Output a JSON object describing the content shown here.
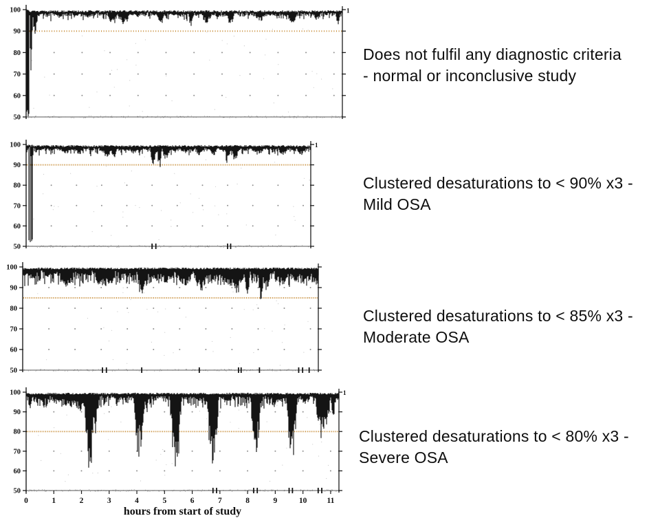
{
  "colors": {
    "trace": "#141414",
    "threshold": "#c4862b",
    "axis": "#1c1c1c",
    "grid_dot": "#8e8e8e",
    "speckle": "#4a4a4a",
    "text": "#0e0e0e"
  },
  "xaxis": {
    "label": "hours from start of study",
    "ticks": [
      0,
      1,
      2,
      3,
      4,
      5,
      6,
      7,
      8,
      9,
      10,
      11
    ]
  },
  "chart_data": [
    {
      "type": "line",
      "panel": "normal-study",
      "annotation_line1": "Does not fulfil any diagnostic criteria",
      "annotation_line2": "- normal or inconclusive study",
      "y_ticks": [
        100,
        90,
        80,
        70,
        60,
        50
      ],
      "ylim": [
        50,
        100
      ],
      "hours_span": 11.3,
      "threshold": 90,
      "channel_label": "1",
      "grid_dot_rows": [
        80,
        70,
        60
      ],
      "noise": {
        "band_min": 0.8,
        "band_var": 1.5,
        "dip_prob": 0.18,
        "dip_mag": 2.5
      },
      "start_artifact": {
        "end": 0.1,
        "prob": 0.85
      },
      "events": [
        {
          "h": 0.18,
          "min": 67,
          "w": 0.06
        },
        {
          "h": 0.32,
          "min": 85,
          "w": 0.09
        },
        {
          "h": 1.2,
          "min": 96.5,
          "w": 0.2
        },
        {
          "h": 2.2,
          "min": 96,
          "w": 0.2
        },
        {
          "h": 3.1,
          "min": 93,
          "w": 0.2
        },
        {
          "h": 3.5,
          "min": 92.5,
          "w": 0.22
        },
        {
          "h": 4.8,
          "min": 92,
          "w": 0.15
        },
        {
          "h": 5.9,
          "min": 91.5,
          "w": 0.1
        },
        {
          "h": 6.45,
          "min": 93,
          "w": 0.2
        },
        {
          "h": 7.3,
          "min": 92.5,
          "w": 0.15
        },
        {
          "h": 8.35,
          "min": 94,
          "w": 0.2
        },
        {
          "h": 9.5,
          "min": 93.5,
          "w": 0.2
        },
        {
          "h": 10.4,
          "min": 95,
          "w": 0.15
        },
        {
          "h": 11.15,
          "min": 91.5,
          "w": 0.07
        }
      ],
      "baseline_marks_hours": []
    },
    {
      "type": "line",
      "panel": "mild-osa",
      "annotation_line1": "Clustered desaturations to < 90% x3 -",
      "annotation_line2": "Mild OSA",
      "y_ticks": [
        100,
        90,
        80,
        70,
        60,
        50
      ],
      "ylim": [
        50,
        100
      ],
      "hours_span": 11.3,
      "threshold": 90,
      "channel_label": "1",
      "grid_dot_rows": [
        80,
        70,
        60
      ],
      "noise": {
        "band_min": 0.9,
        "band_var": 1.6,
        "dip_prob": 0.25,
        "dip_mag": 2.8
      },
      "start_artifact": {
        "end": 0.3,
        "prob": 0.7
      },
      "events": [
        {
          "h": 1.6,
          "min": 95.5,
          "w": 0.25
        },
        {
          "h": 2.1,
          "min": 95,
          "w": 0.2
        },
        {
          "h": 3.2,
          "min": 94,
          "w": 0.25
        },
        {
          "h": 3.5,
          "min": 93.5,
          "w": 0.12
        },
        {
          "h": 4.3,
          "min": 95,
          "w": 0.2
        },
        {
          "h": 5.05,
          "min": 89.5,
          "w": 0.13
        },
        {
          "h": 5.3,
          "min": 86.5,
          "w": 0.1
        },
        {
          "h": 5.55,
          "min": 92,
          "w": 0.15
        },
        {
          "h": 6.3,
          "min": 96,
          "w": 0.2
        },
        {
          "h": 6.9,
          "min": 94,
          "w": 0.2
        },
        {
          "h": 7.45,
          "min": 93.5,
          "w": 0.15
        },
        {
          "h": 8.0,
          "min": 90.5,
          "w": 0.13
        },
        {
          "h": 8.3,
          "min": 91.5,
          "w": 0.15
        },
        {
          "h": 9.2,
          "min": 95,
          "w": 0.3
        },
        {
          "h": 10.2,
          "min": 94.5,
          "w": 0.2
        },
        {
          "h": 10.9,
          "min": 95,
          "w": 0.2
        }
      ],
      "baseline_marks_hours": [
        5.0,
        5.15,
        8.0,
        8.12
      ]
    },
    {
      "type": "line",
      "panel": "moderate-osa",
      "annotation_line1": "Clustered desaturations to < 85% x3 -",
      "annotation_line2": "Moderate OSA",
      "y_ticks": [
        100,
        90,
        80,
        70,
        60,
        50
      ],
      "ylim": [
        50,
        100
      ],
      "hours_span": 11.3,
      "threshold": 85,
      "channel_label": "",
      "grid_dot_rows": [
        90,
        80,
        70,
        60
      ],
      "noise": {
        "band_min": 1.2,
        "band_var": 2.4,
        "dip_prob": 0.6,
        "dip_mag": 5.5
      },
      "start_artifact": null,
      "events": [
        {
          "h": 0.4,
          "min": 94,
          "w": 0.2
        },
        {
          "h": 1.0,
          "min": 95,
          "w": 0.3
        },
        {
          "h": 1.65,
          "min": 90,
          "w": 0.28
        },
        {
          "h": 2.4,
          "min": 95,
          "w": 0.25
        },
        {
          "h": 3.0,
          "min": 90,
          "w": 0.3
        },
        {
          "h": 3.35,
          "min": 91,
          "w": 0.2
        },
        {
          "h": 4.55,
          "min": 85.5,
          "w": 0.2
        },
        {
          "h": 5.0,
          "min": 93,
          "w": 0.25
        },
        {
          "h": 5.5,
          "min": 91.5,
          "w": 0.3
        },
        {
          "h": 6.2,
          "min": 90.5,
          "w": 0.35
        },
        {
          "h": 6.8,
          "min": 88,
          "w": 0.3
        },
        {
          "h": 7.3,
          "min": 92,
          "w": 0.25
        },
        {
          "h": 7.8,
          "min": 90,
          "w": 0.3
        },
        {
          "h": 8.2,
          "min": 87,
          "w": 0.3
        },
        {
          "h": 8.6,
          "min": 77,
          "w": 0.08
        },
        {
          "h": 9.1,
          "min": 78,
          "w": 0.1
        },
        {
          "h": 9.3,
          "min": 88,
          "w": 0.2
        },
        {
          "h": 9.9,
          "min": 90,
          "w": 0.3
        },
        {
          "h": 10.4,
          "min": 92,
          "w": 0.25
        },
        {
          "h": 10.8,
          "min": 90.5,
          "w": 0.25
        },
        {
          "h": 11.15,
          "min": 93,
          "w": 0.1
        }
      ],
      "baseline_marks_hours": [
        3.05,
        3.2,
        4.55,
        6.75,
        8.25,
        8.35,
        9.05,
        10.55,
        10.7,
        10.95
      ]
    },
    {
      "type": "line",
      "panel": "severe-osa",
      "annotation_line1": "Clustered desaturations to < 80% x3 -",
      "annotation_line2": "Severe OSA",
      "y_ticks": [
        100,
        90,
        80,
        70,
        60,
        50
      ],
      "ylim": [
        50,
        100
      ],
      "hours_span": 11.3,
      "threshold": 80,
      "channel_label": "1",
      "grid_dot_rows": [
        90,
        70,
        60
      ],
      "has_x_axis": true,
      "noise": {
        "band_min": 1.2,
        "band_var": 2.0,
        "dip_prob": 0.5,
        "dip_mag": 4.5
      },
      "start_artifact": null,
      "events": [
        {
          "h": 0.15,
          "min": 89,
          "w": 0.08
        },
        {
          "h": 0.5,
          "min": 95,
          "w": 0.2
        },
        {
          "h": 1.1,
          "min": 94,
          "w": 0.25
        },
        {
          "h": 1.6,
          "min": 92,
          "w": 0.3
        },
        {
          "h": 1.95,
          "min": 90,
          "w": 0.25
        },
        {
          "h": 2.15,
          "min": 87,
          "w": 0.12
        },
        {
          "h": 2.3,
          "min": 60,
          "w": 0.2
        },
        {
          "h": 2.5,
          "min": 75,
          "w": 0.1
        },
        {
          "h": 3.3,
          "min": 96,
          "w": 0.2
        },
        {
          "h": 4.1,
          "min": 65,
          "w": 0.22
        },
        {
          "h": 4.35,
          "min": 88,
          "w": 0.1
        },
        {
          "h": 5.4,
          "min": 58,
          "w": 0.22
        },
        {
          "h": 6.2,
          "min": 94,
          "w": 0.2
        },
        {
          "h": 6.75,
          "min": 55,
          "w": 0.22
        },
        {
          "h": 7.3,
          "min": 95,
          "w": 0.15
        },
        {
          "h": 8.3,
          "min": 67,
          "w": 0.2
        },
        {
          "h": 9.0,
          "min": 93,
          "w": 0.15
        },
        {
          "h": 9.6,
          "min": 61,
          "w": 0.2
        },
        {
          "h": 10.1,
          "min": 94,
          "w": 0.15
        },
        {
          "h": 10.65,
          "min": 75,
          "w": 0.2
        },
        {
          "h": 10.85,
          "min": 82,
          "w": 0.15
        },
        {
          "h": 11.1,
          "min": 88,
          "w": 0.1
        }
      ],
      "baseline_marks_hours": [
        6.75,
        6.88,
        8.22,
        8.35,
        9.5,
        9.62,
        10.55,
        10.68
      ]
    }
  ]
}
